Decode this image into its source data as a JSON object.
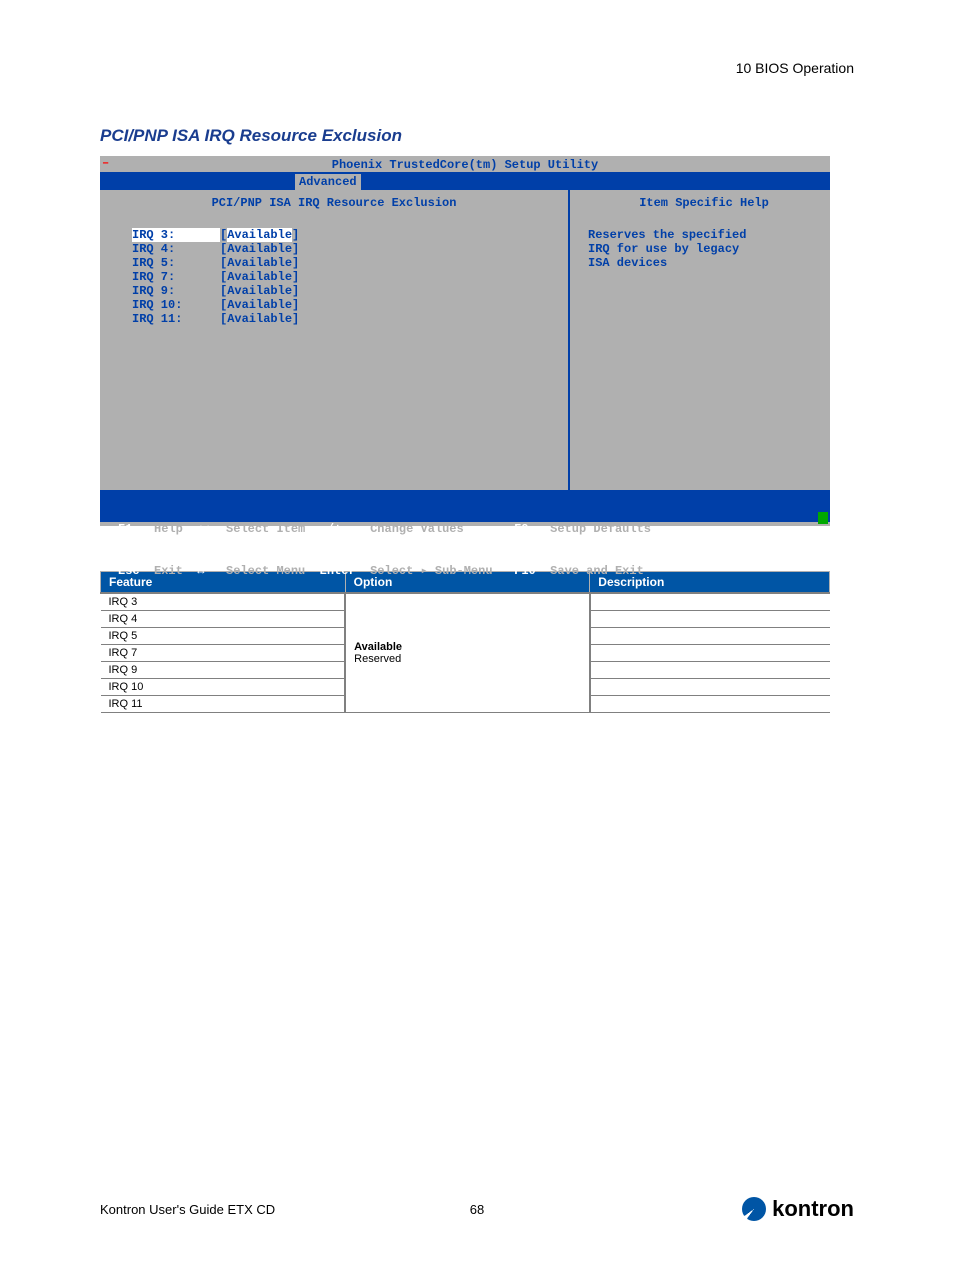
{
  "header": {
    "chapter": "10 BIOS Operation"
  },
  "section": {
    "title": "PCI/PNP ISA IRQ Resource Exclusion"
  },
  "bios": {
    "title": "Phoenix TrustedCore(tm) Setup Utility",
    "tab_active": "Advanced",
    "left_title": "PCI/PNP ISA IRQ Resource Exclusion",
    "right_title": "Item Specific Help",
    "help_text": "Reserves the specified\nIRQ for use by legacy\nISA devices",
    "rows": [
      {
        "label": "IRQ 3:",
        "value": "Available",
        "selected": true
      },
      {
        "label": "IRQ 4:",
        "value": "Available"
      },
      {
        "label": "IRQ 5:",
        "value": "Available"
      },
      {
        "label": "IRQ 7:",
        "value": "Available"
      },
      {
        "label": "IRQ 9:",
        "value": "Available"
      },
      {
        "label": "IRQ 10:",
        "value": "Available"
      },
      {
        "label": "IRQ 11:",
        "value": "Available"
      }
    ],
    "footer": {
      "r1": [
        {
          "k": "F1",
          "l": "Help"
        },
        {
          "k": "↑↓",
          "l": "Select Item"
        },
        {
          "k": "-/+",
          "l": "Change Values"
        },
        {
          "k": "F9",
          "l": "Setup Defaults"
        }
      ],
      "r2": [
        {
          "k": "Esc",
          "l": "Exit"
        },
        {
          "k": "↔",
          "l": "Select Menu"
        },
        {
          "k": "Enter",
          "l": "Select ▸ Sub-Menu"
        },
        {
          "k": "F10",
          "l": "Save and Exit"
        }
      ]
    }
  },
  "table": {
    "headers": {
      "feature": "Feature",
      "option": "Option",
      "description": "Description"
    },
    "features": [
      "IRQ 3",
      "IRQ 4",
      "IRQ 5",
      "IRQ 7",
      "IRQ 9",
      "IRQ 10",
      "IRQ 11"
    ],
    "option_bold": "Available",
    "option_plain": "Reserved"
  },
  "footer": {
    "guide": "Kontron User's Guide ETX CD",
    "page": "68",
    "brand": "kontron"
  },
  "colors": {
    "accent_blue": "#1a3d8f",
    "bios_bg": "#b0b0b0",
    "bios_blue": "#003fa8",
    "table_header": "#0055a5"
  }
}
